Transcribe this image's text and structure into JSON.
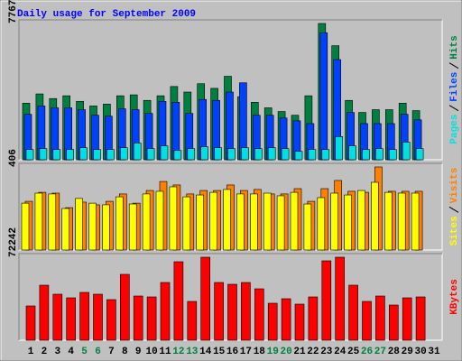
{
  "chart_data": [
    {
      "type": "bar",
      "title": "Daily usage for September 2009",
      "ylim": [
        0,
        7767
      ],
      "yticks": [
        7767
      ],
      "series": [
        {
          "name": "Hits",
          "color": "#008040",
          "values": [
            3223,
            3752,
            3487,
            3646,
            3329,
            3065,
            3170,
            3646,
            3699,
            3382,
            3646,
            4174,
            3857,
            4333,
            4069,
            4756,
            3593,
            3276,
            2959,
            2748,
            2536,
            3646,
            7767,
            6499,
            3382,
            2695,
            2853,
            2853,
            3223,
            2800,
            null
          ]
        },
        {
          "name": "Files",
          "color": "#0040ff",
          "values": [
            2589,
            3065,
            2959,
            2959,
            2853,
            2536,
            2483,
            2906,
            2853,
            2642,
            3329,
            3276,
            2642,
            3435,
            3382,
            3857,
            4386,
            2536,
            2536,
            2378,
            2219,
            2061,
            7239,
            5707,
            2695,
            2061,
            2061,
            2061,
            2589,
            2272,
            null
          ]
        },
        {
          "name": "Pages",
          "color": "#00e0e0",
          "values": [
            581,
            634,
            581,
            581,
            687,
            581,
            581,
            687,
            951,
            634,
            793,
            528,
            634,
            740,
            687,
            634,
            687,
            634,
            687,
            634,
            476,
            581,
            581,
            1321,
            793,
            581,
            634,
            581,
            1004,
            634,
            null
          ]
        }
      ]
    },
    {
      "type": "bar",
      "ylim": [
        0,
        406
      ],
      "yticks": [
        406
      ],
      "series": [
        {
          "name": "Visits",
          "color": "#ff8000",
          "values": [
            238,
            282,
            278,
            207,
            234,
            221,
            238,
            274,
            229,
            291,
            335,
            318,
            274,
            291,
            291,
            318,
            291,
            296,
            274,
            274,
            300,
            238,
            300,
            340,
            287,
            282,
            406,
            287,
            287,
            287,
            null
          ]
        },
        {
          "name": "Sites",
          "color": "#ffff00",
          "values": [
            229,
            278,
            274,
            203,
            252,
            229,
            221,
            260,
            225,
            274,
            287,
            309,
            260,
            269,
            282,
            296,
            274,
            274,
            278,
            265,
            282,
            225,
            256,
            278,
            269,
            291,
            331,
            282,
            278,
            278,
            null
          ]
        }
      ]
    },
    {
      "type": "bar",
      "ylim": [
        0,
        72242
      ],
      "yticks": [
        72242
      ],
      "series": [
        {
          "name": "KBytes",
          "color": "#ff0000",
          "values": [
            29838,
            47897,
            40045,
            36904,
            41616,
            40045,
            35334,
            57320,
            38475,
            37690,
            50253,
            68312,
            33764,
            72242,
            50253,
            48682,
            50253,
            44756,
            32193,
            36119,
            31408,
            37690,
            69098,
            72242,
            47897,
            33764,
            38475,
            30623,
            36904,
            37690,
            null
          ]
        }
      ],
      "categories": [
        "1",
        "2",
        "3",
        "4",
        "5",
        "6",
        "7",
        "8",
        "9",
        "10",
        "11",
        "12",
        "13",
        "14",
        "15",
        "16",
        "17",
        "18",
        "19",
        "20",
        "21",
        "22",
        "23",
        "24",
        "25",
        "26",
        "27",
        "28",
        "29",
        "30",
        "31"
      ],
      "category_colors": [
        "#000000",
        "#000000",
        "#000000",
        "#000000",
        "#008040",
        "#008040",
        "#000000",
        "#000000",
        "#000000",
        "#000000",
        "#000000",
        "#008040",
        "#008040",
        "#000000",
        "#000000",
        "#000000",
        "#000000",
        "#000000",
        "#008040",
        "#008040",
        "#000000",
        "#000000",
        "#000000",
        "#000000",
        "#000000",
        "#008040",
        "#008040",
        "#000000",
        "#000000",
        "#000000",
        "#000000"
      ]
    }
  ]
}
